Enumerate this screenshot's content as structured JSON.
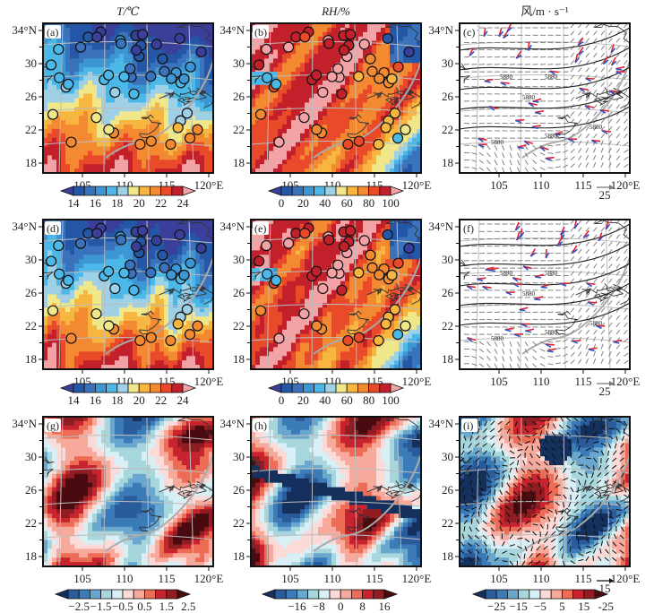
{
  "figure": {
    "column_titles": [
      "T/℃",
      "RH/%",
      "风/m · s⁻¹"
    ],
    "panel_labels": [
      "(a)",
      "(b)",
      "(c)",
      "(d)",
      "(e)",
      "(f)",
      "(g)",
      "(h)",
      "(i)"
    ],
    "x_ticks": [
      "105",
      "110",
      "115",
      "120°E"
    ],
    "y_ticks": [
      "34°N",
      "30",
      "26",
      "22",
      "18"
    ],
    "wind_reference": {
      "row1": "25",
      "row2": "25",
      "row3": "15"
    },
    "contour_label": "5880"
  },
  "chart_data": [
    {
      "type": "heatmap",
      "panel": "(a)",
      "title": "T/℃",
      "variable": "temperature",
      "xlim": [
        100.5,
        120
      ],
      "ylim": [
        16.5,
        34
      ],
      "x_ticks": [
        105,
        110,
        115,
        120
      ],
      "y_ticks": [
        18,
        22,
        26,
        30,
        34
      ],
      "colorbar": {
        "ticks": [
          "14",
          "16",
          "18",
          "20",
          "22",
          "24"
        ],
        "levels": [
          13,
          14,
          15,
          16,
          17,
          18,
          19,
          20,
          21,
          22,
          23,
          24,
          25
        ],
        "colors": [
          "#3a3f9a",
          "#2457a6",
          "#3a72bb",
          "#3d97d4",
          "#4bb8e8",
          "#9ed1e6",
          "#efe78a",
          "#f6b640",
          "#f38a32",
          "#e84a2a",
          "#c2202a",
          "#f3a3a6"
        ]
      },
      "overlay": "station observations (circles)"
    },
    {
      "type": "heatmap",
      "panel": "(b)",
      "title": "RH/%",
      "variable": "relative humidity",
      "xlim": [
        100.5,
        120
      ],
      "ylim": [
        16.5,
        34
      ],
      "colorbar": {
        "ticks": [
          "0",
          "20",
          "40",
          "60",
          "80",
          "100"
        ],
        "colors": [
          "#3a3f9a",
          "#2457a6",
          "#3a72bb",
          "#3d97d4",
          "#4bb8e8",
          "#9ed1e6",
          "#efe78a",
          "#f6b640",
          "#f38a32",
          "#e84a2a",
          "#c2202a",
          "#f3a3a6"
        ]
      },
      "overlay": "station observations (circles)"
    },
    {
      "type": "vector",
      "panel": "(c)",
      "title": "风/m · s⁻¹",
      "variable": "wind",
      "xlim": [
        100.5,
        120
      ],
      "ylim": [
        16.5,
        34
      ],
      "reference_vector": 25,
      "contour_label": "5880",
      "overlay": "observed (red) vs simulated (blue) wind arrows"
    },
    {
      "type": "heatmap",
      "panel": "(d)",
      "variable": "temperature",
      "xlim": [
        100.5,
        120
      ],
      "ylim": [
        16.5,
        34
      ],
      "colorbar": {
        "ticks": [
          "14",
          "16",
          "18",
          "20",
          "22",
          "24"
        ]
      }
    },
    {
      "type": "heatmap",
      "panel": "(e)",
      "variable": "relative humidity",
      "xlim": [
        100.5,
        120
      ],
      "ylim": [
        16.5,
        34
      ],
      "colorbar": {
        "ticks": [
          "0",
          "20",
          "40",
          "60",
          "80",
          "100"
        ]
      }
    },
    {
      "type": "vector",
      "panel": "(f)",
      "variable": "wind",
      "xlim": [
        100.5,
        120
      ],
      "ylim": [
        16.5,
        34
      ],
      "reference_vector": 25,
      "contour_label": "5880"
    },
    {
      "type": "heatmap",
      "panel": "(g)",
      "variable": "temperature difference",
      "xlim": [
        100.5,
        120
      ],
      "ylim": [
        16.5,
        34
      ],
      "colorbar": {
        "ticks": [
          "−2.5",
          "−1.5",
          "−0.5",
          "0.5",
          "1.5",
          "2.5"
        ],
        "colors": [
          "#16305e",
          "#2a5c9c",
          "#3b7bb7",
          "#6aa7cf",
          "#a7d6dc",
          "#d9eff6",
          "#fbdad7",
          "#f7aa9c",
          "#ec6c55",
          "#c8242f",
          "#8f1d22",
          "#4a0b10"
        ]
      }
    },
    {
      "type": "heatmap",
      "panel": "(h)",
      "variable": "relative humidity difference",
      "xlim": [
        100.5,
        120
      ],
      "ylim": [
        16.5,
        34
      ],
      "colorbar": {
        "ticks": [
          "−16",
          "−8",
          "0",
          "8",
          "16"
        ]
      }
    },
    {
      "type": "heatmap",
      "panel": "(i)",
      "variable": "wind difference",
      "xlim": [
        100.5,
        120
      ],
      "ylim": [
        16.5,
        34
      ],
      "reference_vector": 15,
      "colorbar": {
        "ticks": [
          "−25",
          "−15",
          "−5",
          "5",
          "15",
          "-25"
        ]
      }
    }
  ]
}
